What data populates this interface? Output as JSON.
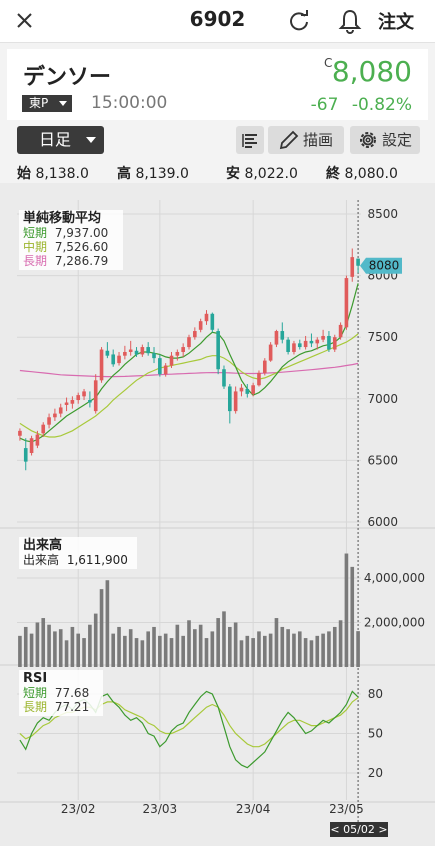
{
  "topbar": {
    "title": "6902",
    "order_label": "注文"
  },
  "quote": {
    "name": "デンソー",
    "exchange": "東P",
    "time": "15:00:00",
    "price_flag": "C",
    "price": "8,080",
    "change": "-67",
    "change_pct": "-0.82%"
  },
  "toolbar": {
    "period": "日足",
    "draw_label": "描画",
    "settings_label": "設定"
  },
  "ohlc": {
    "open_label": "始",
    "open": "8,138.0",
    "high_label": "高",
    "high": "8,139.0",
    "low_label": "安",
    "low": "8,022.0",
    "close_label": "終",
    "close": "8,080.0"
  },
  "ma_legend": {
    "title": "単純移動平均",
    "short_label": "短期",
    "short": "7,937.00",
    "mid_label": "中期",
    "mid": "7,526.60",
    "long_label": "長期",
    "long": "7,286.79"
  },
  "volume_legend": {
    "title": "出来高",
    "label": "出来高",
    "value": "1,611,900"
  },
  "rsi_legend": {
    "title": "RSI",
    "short_label": "短期",
    "short": "77.68",
    "long_label": "長期",
    "long": "77.21"
  },
  "colors": {
    "up": "#e05b5b",
    "down": "#26a69a",
    "price_green": "#4caf50",
    "ma_short": "#3c9a2e",
    "ma_mid": "#a8c93a",
    "ma_long": "#d86bb0",
    "tag": "#52b9c9"
  },
  "chart_data": [
    {
      "type": "candlestick",
      "x_ticks": [
        "23/02",
        "23/03",
        "23/04",
        "23/05"
      ],
      "y_ticks": [
        8500,
        8000,
        7500,
        7000,
        6500,
        6000
      ],
      "ylim": [
        6000,
        8500
      ],
      "last_price_tag": "8080",
      "ohlc": [
        [
          6700,
          6760,
          6660,
          6740
        ],
        [
          6600,
          6680,
          6420,
          6490
        ],
        [
          6560,
          6700,
          6540,
          6680
        ],
        [
          6620,
          6740,
          6600,
          6710
        ],
        [
          6720,
          6810,
          6690,
          6790
        ],
        [
          6790,
          6880,
          6760,
          6850
        ],
        [
          6850,
          6920,
          6820,
          6880
        ],
        [
          6880,
          6960,
          6850,
          6930
        ],
        [
          6950,
          7010,
          6900,
          6970
        ],
        [
          6960,
          7020,
          6920,
          6990
        ],
        [
          6990,
          7050,
          6960,
          7030
        ],
        [
          7020,
          7080,
          6990,
          7060
        ],
        [
          6990,
          7060,
          6930,
          6970
        ],
        [
          6900,
          7200,
          6880,
          7150
        ],
        [
          7150,
          7420,
          7130,
          7400
        ],
        [
          7390,
          7460,
          7330,
          7350
        ],
        [
          7360,
          7400,
          7260,
          7280
        ],
        [
          7290,
          7380,
          7270,
          7350
        ],
        [
          7350,
          7430,
          7320,
          7380
        ],
        [
          7380,
          7470,
          7350,
          7400
        ],
        [
          7390,
          7420,
          7340,
          7360
        ],
        [
          7360,
          7440,
          7340,
          7420
        ],
        [
          7420,
          7460,
          7350,
          7370
        ],
        [
          7370,
          7420,
          7290,
          7330
        ],
        [
          7330,
          7360,
          7180,
          7200
        ],
        [
          7200,
          7290,
          7180,
          7270
        ],
        [
          7270,
          7380,
          7250,
          7350
        ],
        [
          7350,
          7400,
          7310,
          7380
        ],
        [
          7380,
          7450,
          7340,
          7420
        ],
        [
          7420,
          7520,
          7400,
          7500
        ],
        [
          7500,
          7580,
          7480,
          7550
        ],
        [
          7560,
          7650,
          7540,
          7630
        ],
        [
          7630,
          7720,
          7600,
          7690
        ],
        [
          7690,
          7700,
          7540,
          7560
        ],
        [
          7550,
          7570,
          7200,
          7240
        ],
        [
          7240,
          7270,
          7080,
          7100
        ],
        [
          7100,
          7120,
          6800,
          6900
        ],
        [
          6900,
          7100,
          6880,
          7060
        ],
        [
          7060,
          7120,
          7020,
          7090
        ],
        [
          7080,
          7120,
          7010,
          7040
        ],
        [
          7040,
          7130,
          7020,
          7110
        ],
        [
          7110,
          7230,
          7100,
          7210
        ],
        [
          7210,
          7330,
          7190,
          7310
        ],
        [
          7310,
          7460,
          7300,
          7440
        ],
        [
          7440,
          7560,
          7420,
          7550
        ],
        [
          7550,
          7620,
          7450,
          7480
        ],
        [
          7480,
          7500,
          7360,
          7380
        ],
        [
          7380,
          7470,
          7360,
          7450
        ],
        [
          7450,
          7480,
          7400,
          7420
        ],
        [
          7420,
          7510,
          7400,
          7470
        ],
        [
          7470,
          7530,
          7420,
          7450
        ],
        [
          7450,
          7500,
          7400,
          7480
        ],
        [
          7480,
          7560,
          7460,
          7510
        ],
        [
          7510,
          7550,
          7380,
          7400
        ],
        [
          7400,
          7520,
          7380,
          7500
        ],
        [
          7500,
          7620,
          7480,
          7600
        ],
        [
          7580,
          8000,
          7560,
          7980
        ],
        [
          7990,
          8220,
          7950,
          8150
        ],
        [
          8138,
          8139,
          8022,
          8080
        ]
      ],
      "ma_short": [
        6680,
        6660,
        6650,
        6670,
        6700,
        6740,
        6780,
        6820,
        6860,
        6890,
        6920,
        6950,
        6980,
        7010,
        7080,
        7140,
        7190,
        7230,
        7280,
        7320,
        7360,
        7380,
        7380,
        7370,
        7360,
        7340,
        7330,
        7330,
        7340,
        7370,
        7410,
        7450,
        7500,
        7540,
        7530,
        7470,
        7360,
        7260,
        7150,
        7080,
        7030,
        7050,
        7090,
        7140,
        7200,
        7260,
        7300,
        7330,
        7360,
        7380,
        7390,
        7410,
        7430,
        7440,
        7460,
        7500,
        7600,
        7760,
        7937
      ],
      "ma_mid": [
        6800,
        6770,
        6740,
        6720,
        6700,
        6690,
        6690,
        6700,
        6720,
        6740,
        6770,
        6800,
        6830,
        6860,
        6900,
        6940,
        6990,
        7030,
        7070,
        7110,
        7150,
        7180,
        7210,
        7230,
        7250,
        7260,
        7270,
        7280,
        7290,
        7300,
        7310,
        7320,
        7340,
        7350,
        7350,
        7330,
        7300,
        7260,
        7220,
        7190,
        7170,
        7160,
        7170,
        7190,
        7210,
        7240,
        7260,
        7280,
        7300,
        7320,
        7340,
        7360,
        7380,
        7400,
        7420,
        7440,
        7460,
        7490,
        7527
      ],
      "ma_long": [
        7230,
        7225,
        7220,
        7215,
        7210,
        7205,
        7200,
        7195,
        7192,
        7190,
        7188,
        7186,
        7184,
        7182,
        7181,
        7180,
        7180,
        7181,
        7182,
        7184,
        7186,
        7188,
        7190,
        7193,
        7196,
        7198,
        7200,
        7202,
        7204,
        7206,
        7208,
        7210,
        7212,
        7213,
        7213,
        7212,
        7210,
        7208,
        7206,
        7205,
        7205,
        7206,
        7208,
        7210,
        7213,
        7216,
        7220,
        7224,
        7228,
        7232,
        7236,
        7241,
        7246,
        7251,
        7256,
        7262,
        7270,
        7278,
        7287
      ]
    },
    {
      "type": "bar",
      "name": "出来高",
      "y_ticks": [
        2000000,
        4000000
      ],
      "ylim": [
        0,
        6000000
      ],
      "values": [
        1400000,
        1800000,
        1500000,
        2000000,
        2200000,
        1900000,
        1600000,
        1700000,
        1200000,
        1800000,
        1500000,
        1300000,
        1900000,
        2400000,
        3500000,
        3900000,
        1500000,
        1800000,
        1400000,
        1700000,
        1300000,
        1200000,
        1600000,
        1800000,
        1400000,
        1500000,
        1300000,
        1900000,
        1400000,
        2100000,
        1700000,
        1900000,
        1300000,
        1600000,
        2200000,
        2500000,
        1800000,
        2000000,
        1200000,
        1400000,
        1300000,
        1600000,
        1400000,
        1500000,
        2200000,
        1800000,
        1700000,
        1500000,
        1600000,
        1300000,
        1200000,
        1400000,
        1500000,
        1600000,
        1800000,
        2100000,
        5100000,
        4500000,
        1611900
      ]
    },
    {
      "type": "line",
      "name": "RSI",
      "y_ticks": [
        20,
        50,
        80
      ],
      "ylim": [
        0,
        100
      ],
      "series": [
        {
          "name": "短期",
          "values": [
            45,
            38,
            50,
            58,
            62,
            60,
            66,
            70,
            72,
            68,
            74,
            76,
            72,
            66,
            78,
            80,
            74,
            70,
            64,
            60,
            62,
            58,
            50,
            48,
            40,
            44,
            52,
            56,
            58,
            66,
            72,
            78,
            82,
            80,
            70,
            55,
            40,
            30,
            26,
            24,
            28,
            32,
            36,
            44,
            52,
            60,
            66,
            62,
            56,
            50,
            52,
            56,
            60,
            58,
            62,
            66,
            72,
            82,
            77.68
          ]
        },
        {
          "name": "長期",
          "values": [
            50,
            46,
            48,
            52,
            56,
            58,
            62,
            64,
            66,
            66,
            68,
            70,
            70,
            68,
            72,
            74,
            74,
            72,
            68,
            66,
            64,
            62,
            58,
            56,
            52,
            50,
            50,
            52,
            54,
            58,
            62,
            66,
            70,
            72,
            70,
            64,
            56,
            50,
            46,
            42,
            40,
            40,
            42,
            46,
            50,
            54,
            58,
            60,
            60,
            58,
            56,
            56,
            58,
            60,
            62,
            64,
            68,
            74,
            77.21
          ]
        }
      ]
    }
  ]
}
